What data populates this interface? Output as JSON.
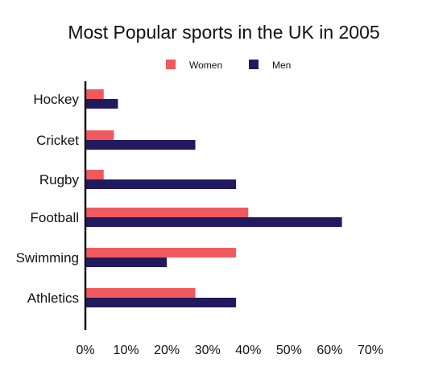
{
  "chart_data": {
    "type": "bar",
    "orientation": "horizontal",
    "title": "Most Popular sports in the UK in 2005",
    "xlabel": "",
    "ylabel": "",
    "categories": [
      "Hockey",
      "Cricket",
      "Rugby",
      "Football",
      "Swimming",
      "Athletics"
    ],
    "series": [
      {
        "name": "Women",
        "color": "#f05a5f",
        "values": [
          4.5,
          7,
          4.5,
          40,
          37,
          27
        ]
      },
      {
        "name": "Men",
        "color": "#221a5e",
        "values": [
          8,
          27,
          37,
          63,
          20,
          37
        ]
      }
    ],
    "xlim": [
      0,
      70
    ],
    "xticks": [
      "0%",
      "10%",
      "20%",
      "30%",
      "40%",
      "50%",
      "60%",
      "70%"
    ],
    "xtick_values": [
      0,
      10,
      20,
      30,
      40,
      50,
      60,
      70
    ],
    "grid": false,
    "legend_position": "top-center"
  }
}
